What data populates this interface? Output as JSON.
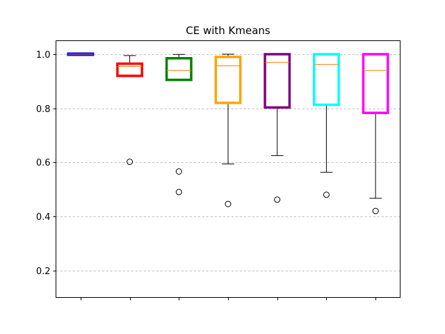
{
  "chart_data": {
    "type": "box",
    "title": "CE with Kmeans",
    "xlabel": "",
    "ylabel": "",
    "ylim": [
      0.1,
      1.05
    ],
    "yticks": [
      "0.2",
      "0.4",
      "0.6",
      "0.8",
      "1.0"
    ],
    "ytick_values": [
      0.2,
      0.4,
      0.6,
      0.8,
      1.0
    ],
    "grid": "y-dashed",
    "median_color": "#ff7f0e",
    "boxes": [
      {
        "color": "#0000ff",
        "q1": 0.998,
        "median": 1.0,
        "q3": 1.002,
        "whisker_low": 0.998,
        "whisker_high": 1.002,
        "outliers": []
      },
      {
        "color": "#ff0000",
        "q1": 0.92,
        "median": 0.955,
        "q3": 0.965,
        "whisker_low": 0.92,
        "whisker_high": 0.995,
        "outliers": [
          0.602
        ]
      },
      {
        "color": "#008000",
        "q1": 0.905,
        "median": 0.94,
        "q3": 0.985,
        "whisker_low": 0.903,
        "whisker_high": 0.999,
        "outliers": [
          0.566,
          0.49
        ]
      },
      {
        "color": "#ffa500",
        "q1": 0.82,
        "median": 0.957,
        "q3": 0.99,
        "whisker_low": 0.594,
        "whisker_high": 1.0,
        "outliers": [
          0.446
        ]
      },
      {
        "color": "#800080",
        "q1": 0.803,
        "median": 0.97,
        "q3": 1.0,
        "whisker_low": 0.625,
        "whisker_high": 1.0,
        "outliers": [
          0.462
        ]
      },
      {
        "color": "#00ffff",
        "q1": 0.813,
        "median": 0.962,
        "q3": 1.0,
        "whisker_low": 0.563,
        "whisker_high": 1.0,
        "outliers": [
          0.48
        ]
      },
      {
        "color": "#ff00ff",
        "q1": 0.783,
        "median": 0.94,
        "q3": 1.0,
        "whisker_low": 0.467,
        "whisker_high": 1.0,
        "outliers": [
          0.42
        ]
      }
    ]
  }
}
